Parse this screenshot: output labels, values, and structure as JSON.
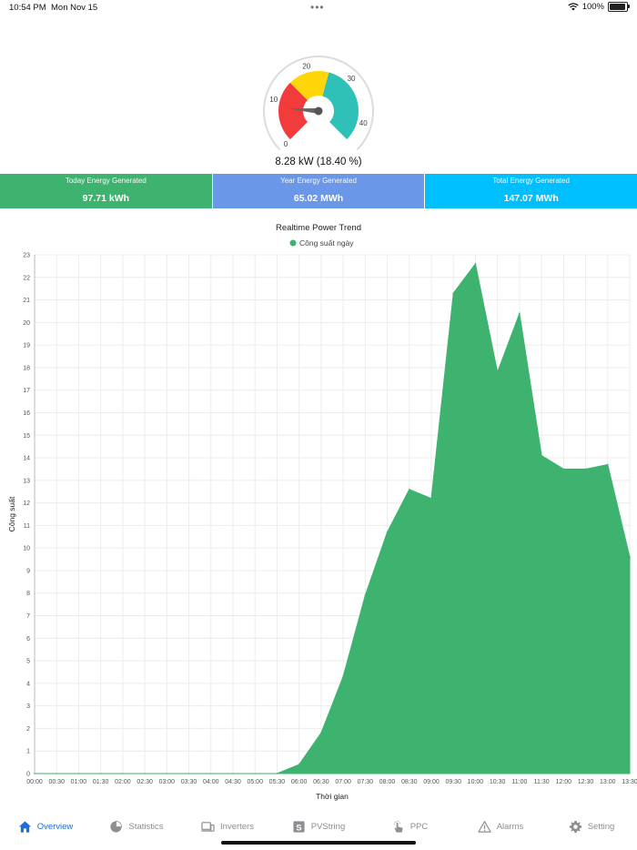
{
  "status_bar": {
    "time": "10:54 PM",
    "date": "Mon Nov 15",
    "battery": "100%",
    "battery_level": 1.0
  },
  "gauge": {
    "min": 0,
    "max": 45,
    "value": 8.28,
    "ticks": [
      "0",
      "10",
      "20",
      "30",
      "40"
    ],
    "readout": "8.28 kW  (18.40 %)",
    "bands": [
      {
        "from": 0,
        "to": 15,
        "color": "#f23b3b"
      },
      {
        "from": 15,
        "to": 25,
        "color": "#ffd60a"
      },
      {
        "from": 25,
        "to": 45,
        "color": "#2fc0b8"
      }
    ]
  },
  "cards": [
    {
      "title": "Today Energy Generated",
      "value": "97.71 kWh",
      "color": "#3db36f"
    },
    {
      "title": "Year Energy Generated",
      "value": "65.02 MWh",
      "color": "#6b97e8"
    },
    {
      "title": "Total Energy Generated",
      "value": "147.07 MWh",
      "color": "#00bfff"
    }
  ],
  "chart_data": {
    "type": "area",
    "title": "Realtime Power Trend",
    "xlabel": "Thời gian",
    "ylabel": "Công suất",
    "ylim": [
      0,
      23
    ],
    "y_ticks": [
      "0",
      "1",
      "2",
      "3",
      "4",
      "5",
      "6",
      "7",
      "8",
      "9",
      "10",
      "11",
      "12",
      "13",
      "14",
      "15",
      "16",
      "17",
      "18",
      "19",
      "20",
      "21",
      "22",
      "23"
    ],
    "categories": [
      "00:00",
      "00:30",
      "01:00",
      "01:30",
      "02:00",
      "02:30",
      "03:00",
      "03:30",
      "04:00",
      "04:30",
      "05:00",
      "05:30",
      "06:00",
      "06:30",
      "07:00",
      "07:30",
      "08:00",
      "08:30",
      "09:00",
      "09:30",
      "10:00",
      "10:30",
      "11:00",
      "11:30",
      "12:00",
      "12:30",
      "13:00",
      "13:30"
    ],
    "series": [
      {
        "name": "Công suất ngày",
        "color": "#3db36f",
        "values": [
          0,
          0,
          0,
          0,
          0,
          0,
          0,
          0,
          0,
          0,
          0,
          0,
          0.4,
          1.8,
          4.3,
          7.9,
          10.7,
          12.6,
          12.2,
          21.3,
          22.6,
          17.8,
          20.4,
          14.1,
          13.5,
          13.5,
          13.7,
          9.6
        ]
      }
    ],
    "grid": true,
    "legend": "top"
  },
  "tabs": [
    {
      "label": "Overview",
      "icon": "home-icon",
      "active": true
    },
    {
      "label": "Statistics",
      "icon": "pie-chart-icon",
      "active": false
    },
    {
      "label": "Inverters",
      "icon": "devices-icon",
      "active": false
    },
    {
      "label": "PVString",
      "icon": "s-box-icon",
      "active": false
    },
    {
      "label": "PPC",
      "icon": "touch-icon",
      "active": false
    },
    {
      "label": "Alarms",
      "icon": "warning-icon",
      "active": false
    },
    {
      "label": "Setting",
      "icon": "gear-icon",
      "active": false
    }
  ]
}
